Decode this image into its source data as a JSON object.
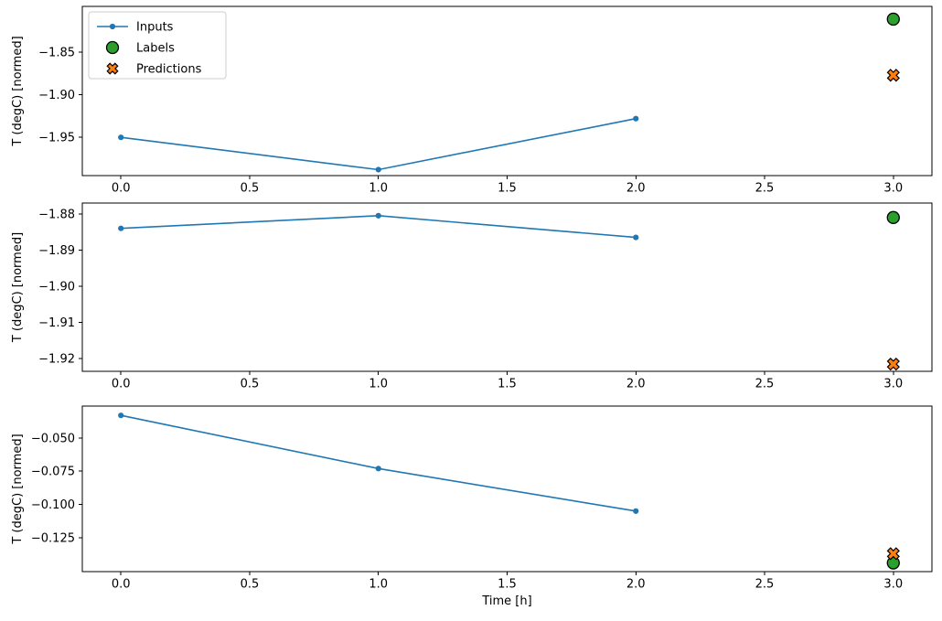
{
  "figure_title": "",
  "xlabel": "Time [h]",
  "ylabel": "T (degC) [normed]",
  "colors": {
    "inputs": "#1f77b4",
    "labels": "#2ca02c",
    "predictions": "#ff7f0e",
    "marker_edge": "#000000",
    "axis": "#000000",
    "legend_border": "#cccccc",
    "background": "#ffffff"
  },
  "legend": {
    "visible": true,
    "position": "upper left",
    "items": [
      {
        "label": "Inputs",
        "marker": "line-dot",
        "color": "#1f77b4"
      },
      {
        "label": "Labels",
        "marker": "circle",
        "color": "#2ca02c"
      },
      {
        "label": "Predictions",
        "marker": "x",
        "color": "#ff7f0e"
      }
    ]
  },
  "chart_data": [
    {
      "type": "line",
      "ylabel": "T (degC) [normed]",
      "xlabel": "",
      "xlim": [
        -0.15,
        3.15
      ],
      "ylim": [
        -1.995,
        -1.796
      ],
      "xticks": [
        0.0,
        0.5,
        1.0,
        1.5,
        2.0,
        2.5,
        3.0
      ],
      "xtick_labels": [
        "0.0",
        "0.5",
        "1.0",
        "1.5",
        "2.0",
        "2.5",
        "3.0"
      ],
      "yticks": [
        -1.85,
        -1.9,
        -1.95
      ],
      "ytick_labels": [
        "−1.85",
        "−1.90",
        "−1.95"
      ],
      "grid": false,
      "legend_visible": true,
      "series": [
        {
          "name": "Inputs",
          "marker": "dot",
          "line": true,
          "x": [
            0,
            1,
            2
          ],
          "y": [
            -1.95,
            -1.988,
            -1.928
          ]
        }
      ],
      "points": [
        {
          "name": "Labels",
          "marker": "circle",
          "x": 3,
          "y": -1.811
        },
        {
          "name": "Predictions",
          "marker": "x",
          "x": 3,
          "y": -1.877
        }
      ]
    },
    {
      "type": "line",
      "ylabel": "T (degC) [normed]",
      "xlabel": "",
      "xlim": [
        -0.15,
        3.15
      ],
      "ylim": [
        -1.9235,
        -1.877
      ],
      "xticks": [
        0.0,
        0.5,
        1.0,
        1.5,
        2.0,
        2.5,
        3.0
      ],
      "xtick_labels": [
        "0.0",
        "0.5",
        "1.0",
        "1.5",
        "2.0",
        "2.5",
        "3.0"
      ],
      "yticks": [
        -1.88,
        -1.89,
        -1.9,
        -1.91,
        -1.92
      ],
      "ytick_labels": [
        "−1.88",
        "−1.89",
        "−1.90",
        "−1.91",
        "−1.92"
      ],
      "grid": false,
      "legend_visible": false,
      "series": [
        {
          "name": "Inputs",
          "marker": "dot",
          "line": true,
          "x": [
            0,
            1,
            2
          ],
          "y": [
            -1.884,
            -1.8805,
            -1.8865
          ]
        }
      ],
      "points": [
        {
          "name": "Labels",
          "marker": "circle",
          "x": 3,
          "y": -1.881
        },
        {
          "name": "Predictions",
          "marker": "x",
          "x": 3,
          "y": -1.9215
        }
      ]
    },
    {
      "type": "line",
      "ylabel": "T (degC) [normed]",
      "xlabel": "Time [h]",
      "xlim": [
        -0.15,
        3.15
      ],
      "ylim": [
        -0.1505,
        -0.026
      ],
      "xticks": [
        0.0,
        0.5,
        1.0,
        1.5,
        2.0,
        2.5,
        3.0
      ],
      "xtick_labels": [
        "0.0",
        "0.5",
        "1.0",
        "1.5",
        "2.0",
        "2.5",
        "3.0"
      ],
      "yticks": [
        -0.05,
        -0.075,
        -0.1,
        -0.125
      ],
      "ytick_labels": [
        "−0.050",
        "−0.075",
        "−0.100",
        "−0.125"
      ],
      "grid": false,
      "legend_visible": false,
      "series": [
        {
          "name": "Inputs",
          "marker": "dot",
          "line": true,
          "x": [
            0,
            1,
            2
          ],
          "y": [
            -0.033,
            -0.073,
            -0.105
          ]
        }
      ],
      "points": [
        {
          "name": "Labels",
          "marker": "circle",
          "x": 3,
          "y": -0.144
        },
        {
          "name": "Predictions",
          "marker": "x",
          "x": 3,
          "y": -0.137
        }
      ]
    }
  ]
}
